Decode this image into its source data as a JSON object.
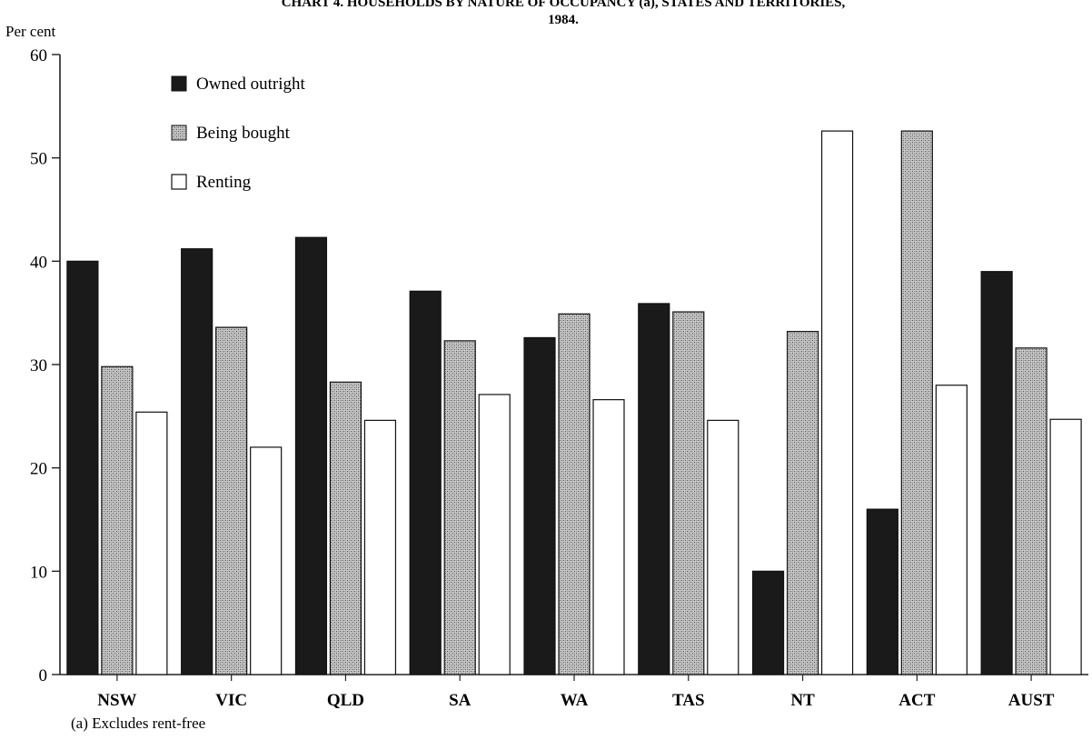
{
  "chart_data": {
    "type": "bar",
    "title": "CHART 4. HOUSEHOLDS BY NATURE OF OCCUPANCY (a), STATES AND TERRITORIES,",
    "title_line2": "1984.",
    "ylabel": "Per cent",
    "xlabel": "",
    "ylim": [
      0,
      60
    ],
    "yticks": [
      0,
      10,
      20,
      30,
      40,
      50,
      60
    ],
    "grid": false,
    "legend_position": "top-left",
    "categories": [
      "NSW",
      "VIC",
      "QLD",
      "SA",
      "WA",
      "TAS",
      "NT",
      "ACT",
      "AUST"
    ],
    "series": [
      {
        "name": "Owned outright",
        "pattern": "solid-dark",
        "color": "#1a1a1a",
        "values": [
          40.0,
          41.2,
          42.3,
          37.1,
          32.6,
          35.9,
          10.0,
          16.0,
          39.0
        ]
      },
      {
        "name": "Being bought",
        "pattern": "stipple",
        "color": "#9a9a9a",
        "values": [
          29.8,
          33.6,
          28.3,
          32.3,
          34.9,
          35.1,
          33.2,
          52.6,
          31.6
        ]
      },
      {
        "name": "Renting",
        "pattern": "open",
        "color": "#ffffff",
        "values": [
          25.4,
          22.0,
          24.6,
          27.1,
          26.6,
          24.6,
          52.6,
          28.0,
          24.7
        ]
      }
    ],
    "footnote": "(a) Excludes rent-free"
  }
}
